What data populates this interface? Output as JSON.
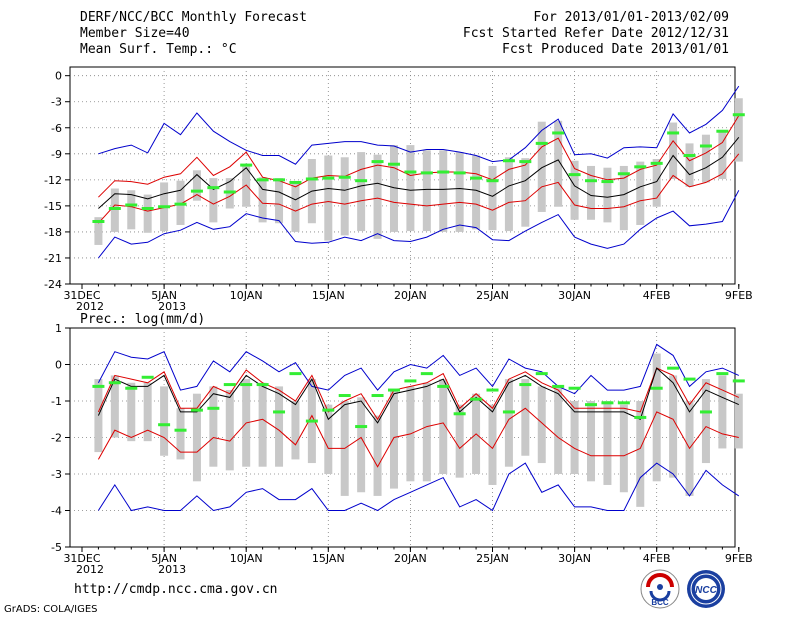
{
  "header": {
    "title": "DERF/NCC/BCC Monthly Forecast",
    "member_size": "Member Size=40",
    "variable": "Mean Surf. Temp.: °C",
    "forecast_period": "For 2013/01/01-2013/02/09",
    "start_date": "Fcst Started Refer Date 2012/12/31",
    "produced_date": "Fcst Produced Date 2013/01/01"
  },
  "footer": {
    "url": "http://cmdp.ncc.cma.gov.cn",
    "credit": "GrADS: COLA/IGES",
    "logo_left_text": "BCC",
    "logo_right_text": "NCC"
  },
  "colors": {
    "max_min": "#0000cc",
    "spread": "#dd0000",
    "mean": "#000000",
    "obs_bar": "#33ee33",
    "box": "#c8c8c8",
    "grid": "#808080"
  },
  "chart_data": [
    {
      "type": "line",
      "title": "Mean Surf. Temp.: °C",
      "ylim": [
        -24,
        1
      ],
      "yticks": [
        0,
        -3,
        -6,
        -9,
        -12,
        -15,
        -18,
        -21,
        -24
      ],
      "x_tick_labels": [
        {
          "day": 0,
          "label": "31DEC",
          "label2": "2012"
        },
        {
          "day": 5,
          "label": "5JAN",
          "label2": "2013"
        },
        {
          "day": 10,
          "label": "10JAN"
        },
        {
          "day": 15,
          "label": "15JAN"
        },
        {
          "day": 20,
          "label": "20JAN"
        },
        {
          "day": 25,
          "label": "25JAN"
        },
        {
          "day": 30,
          "label": "30JAN"
        },
        {
          "day": 35,
          "label": "4FEB"
        },
        {
          "day": 40,
          "label": "9FEB"
        }
      ],
      "days": [
        1,
        2,
        3,
        4,
        5,
        6,
        7,
        8,
        9,
        10,
        11,
        12,
        13,
        14,
        15,
        16,
        17,
        18,
        19,
        20,
        21,
        22,
        23,
        24,
        25,
        26,
        27,
        28,
        29,
        30,
        31,
        32,
        33,
        34,
        35,
        36,
        37,
        38,
        39,
        40
      ],
      "series": [
        {
          "name": "max",
          "values": [
            -9.0,
            -8.4,
            -8.0,
            -8.9,
            -5.5,
            -6.8,
            -4.3,
            -6.4,
            -7.6,
            -8.6,
            -9.2,
            -9.2,
            -10.2,
            -8.0,
            -7.8,
            -7.6,
            -7.6,
            -8.0,
            -8.1,
            -8.8,
            -8.5,
            -8.5,
            -8.8,
            -9.2,
            -9.9,
            -9.7,
            -8.3,
            -6.3,
            -5.0,
            -9.1,
            -9.0,
            -9.5,
            -8.3,
            -8.2,
            -8.3,
            -4.4,
            -6.6,
            -5.6,
            -4.0,
            -1.2
          ]
        },
        {
          "name": "spread_upper",
          "values": [
            -14.0,
            -12.1,
            -12.2,
            -12.5,
            -11.7,
            -11.3,
            -9.4,
            -11.5,
            -10.5,
            -8.8,
            -11.7,
            -12.1,
            -12.8,
            -11.8,
            -11.5,
            -11.6,
            -10.8,
            -10.3,
            -10.6,
            -11.5,
            -11.2,
            -11.1,
            -11.1,
            -11.3,
            -12.0,
            -10.8,
            -10.3,
            -8.2,
            -7.2,
            -10.7,
            -11.5,
            -12.0,
            -11.8,
            -10.8,
            -10.3,
            -7.5,
            -9.8,
            -8.9,
            -7.7,
            -4.6
          ]
        },
        {
          "name": "mean",
          "values": [
            -15.3,
            -13.6,
            -13.7,
            -14.2,
            -13.6,
            -13.2,
            -11.4,
            -13.1,
            -12.2,
            -10.6,
            -13.1,
            -13.4,
            -14.3,
            -13.3,
            -13.0,
            -13.2,
            -12.7,
            -12.4,
            -12.9,
            -13.2,
            -13.1,
            -13.1,
            -13.0,
            -13.2,
            -13.9,
            -12.7,
            -12.1,
            -10.6,
            -9.7,
            -12.7,
            -13.8,
            -14.0,
            -13.7,
            -12.8,
            -12.2,
            -9.2,
            -11.4,
            -10.6,
            -9.4,
            -7.1
          ]
        },
        {
          "name": "spread_lower",
          "values": [
            -17.0,
            -14.9,
            -15.1,
            -15.6,
            -15.2,
            -14.8,
            -13.7,
            -14.8,
            -13.9,
            -12.6,
            -14.7,
            -14.8,
            -15.6,
            -14.8,
            -14.5,
            -14.8,
            -14.4,
            -14.1,
            -14.6,
            -14.8,
            -15.0,
            -14.8,
            -14.6,
            -14.8,
            -15.5,
            -14.6,
            -14.4,
            -12.8,
            -12.3,
            -14.9,
            -15.3,
            -15.3,
            -15.1,
            -14.4,
            -14.1,
            -11.5,
            -12.8,
            -12.3,
            -11.3,
            -9.0
          ]
        },
        {
          "name": "min",
          "values": [
            -21.0,
            -18.6,
            -19.4,
            -19.2,
            -18.2,
            -17.8,
            -16.9,
            -17.7,
            -17.4,
            -15.9,
            -16.4,
            -16.7,
            -19.1,
            -19.3,
            -19.2,
            -18.6,
            -19.0,
            -18.2,
            -19.0,
            -19.1,
            -18.6,
            -17.7,
            -17.2,
            -17.5,
            -18.9,
            -19.0,
            -17.9,
            -16.9,
            -16.0,
            -18.6,
            -19.4,
            -19.9,
            -19.4,
            -17.7,
            -16.4,
            -15.6,
            -17.3,
            -17.1,
            -16.8,
            -13.2
          ]
        }
      ],
      "boxes": [
        [
          -16.3,
          -19.5
        ],
        [
          -13.0,
          -18.0
        ],
        [
          -13.2,
          -17.7
        ],
        [
          -13.7,
          -18.1
        ],
        [
          -12.3,
          -17.9
        ],
        [
          -12.1,
          -17.2
        ],
        [
          -10.9,
          -14.4
        ],
        [
          -11.8,
          -16.9
        ],
        [
          -11.8,
          -15.3
        ],
        [
          -10.2,
          -15.1
        ],
        [
          -11.7,
          -16.9
        ],
        [
          -11.8,
          -17.0
        ],
        [
          -12.3,
          -18.0
        ],
        [
          -9.6,
          -17.0
        ],
        [
          -9.2,
          -19.0
        ],
        [
          -9.4,
          -18.4
        ],
        [
          -8.8,
          -17.9
        ],
        [
          -9.1,
          -18.8
        ],
        [
          -8.0,
          -18.0
        ],
        [
          -8.0,
          -17.9
        ],
        [
          -8.6,
          -17.9
        ],
        [
          -8.6,
          -18.0
        ],
        [
          -8.8,
          -18.0
        ],
        [
          -9.2,
          -17.7
        ],
        [
          -10.4,
          -17.8
        ],
        [
          -9.4,
          -17.9
        ],
        [
          -9.5,
          -17.4
        ],
        [
          -5.3,
          -15.7
        ],
        [
          -5.2,
          -15.1
        ],
        [
          -9.8,
          -16.6
        ],
        [
          -10.4,
          -16.6
        ],
        [
          -10.6,
          -16.9
        ],
        [
          -10.4,
          -17.8
        ],
        [
          -9.9,
          -17.2
        ],
        [
          -9.6,
          -15.1
        ],
        [
          -5.4,
          -11.9
        ],
        [
          -7.8,
          -12.8
        ],
        [
          -6.8,
          -12.3
        ],
        [
          -6.3,
          -11.9
        ],
        [
          -2.6,
          -9.9
        ]
      ],
      "observed": [
        -16.8,
        -15.3,
        -14.9,
        -15.3,
        -15.1,
        -14.8,
        -13.3,
        -12.9,
        -13.4,
        -10.3,
        -12.0,
        -12.0,
        -12.3,
        -11.9,
        -11.8,
        -11.7,
        -12.1,
        -9.9,
        -10.2,
        -11.1,
        -11.2,
        -11.1,
        -11.2,
        -11.8,
        -12.1,
        -9.8,
        -9.9,
        -7.8,
        -6.6,
        -11.4,
        -12.1,
        -12.2,
        -11.3,
        -10.5,
        -10.1,
        -6.6,
        -9.2,
        -8.1,
        -6.4,
        -4.5
      ]
    },
    {
      "type": "line",
      "title": "Prec.: log(mm/d)",
      "ylim": [
        -5,
        1
      ],
      "yticks": [
        1,
        0,
        -1,
        -2,
        -3,
        -4,
        -5
      ],
      "x_tick_labels": [
        {
          "day": 0,
          "label": "31DEC",
          "label2": "2012"
        },
        {
          "day": 5,
          "label": "5JAN",
          "label2": "2013"
        },
        {
          "day": 10,
          "label": "10JAN"
        },
        {
          "day": 15,
          "label": "15JAN"
        },
        {
          "day": 20,
          "label": "20JAN"
        },
        {
          "day": 25,
          "label": "25JAN"
        },
        {
          "day": 30,
          "label": "30JAN"
        },
        {
          "day": 35,
          "label": "4FEB"
        },
        {
          "day": 40,
          "label": "9FEB"
        }
      ],
      "days": [
        1,
        2,
        3,
        4,
        5,
        6,
        7,
        8,
        9,
        10,
        11,
        12,
        13,
        14,
        15,
        16,
        17,
        18,
        19,
        20,
        21,
        22,
        23,
        24,
        25,
        26,
        27,
        28,
        29,
        30,
        31,
        32,
        33,
        34,
        35,
        36,
        37,
        38,
        39,
        40
      ],
      "series": [
        {
          "name": "max",
          "values": [
            -0.5,
            0.35,
            0.2,
            0.15,
            0.35,
            -0.7,
            -0.6,
            0.1,
            -0.2,
            0.35,
            0.1,
            -0.2,
            0.05,
            -0.6,
            -0.7,
            -0.3,
            -0.1,
            -0.7,
            -0.2,
            0.0,
            -0.1,
            0.25,
            -0.3,
            -0.1,
            -0.6,
            0.15,
            -0.1,
            -0.2,
            -0.6,
            -0.8,
            -0.3,
            -0.7,
            -0.7,
            -0.6,
            0.55,
            0.25,
            -0.6,
            -0.2,
            -0.1,
            -0.3
          ]
        },
        {
          "name": "spread_upper",
          "values": [
            -1.3,
            -0.3,
            -0.4,
            -0.5,
            -0.2,
            -1.2,
            -1.2,
            -0.6,
            -0.8,
            -0.15,
            -0.5,
            -0.7,
            -1.0,
            -0.3,
            -1.3,
            -1.0,
            -0.8,
            -1.5,
            -0.7,
            -0.6,
            -0.5,
            -0.25,
            -1.2,
            -0.8,
            -1.2,
            -0.4,
            -0.2,
            -0.5,
            -0.7,
            -1.2,
            -1.2,
            -1.2,
            -1.2,
            -1.3,
            -0.1,
            -0.3,
            -1.1,
            -0.5,
            -0.7,
            -0.9
          ]
        },
        {
          "name": "mean",
          "values": [
            -1.4,
            -0.4,
            -0.6,
            -0.6,
            -0.3,
            -1.3,
            -1.3,
            -0.8,
            -0.9,
            -0.3,
            -0.6,
            -0.8,
            -1.1,
            -0.4,
            -1.5,
            -1.1,
            -1.0,
            -1.6,
            -0.8,
            -0.7,
            -0.6,
            -0.4,
            -1.3,
            -0.9,
            -1.3,
            -0.5,
            -0.3,
            -0.6,
            -0.8,
            -1.3,
            -1.3,
            -1.3,
            -1.3,
            -1.5,
            -0.1,
            -0.5,
            -1.3,
            -0.7,
            -0.9,
            -1.1
          ]
        },
        {
          "name": "spread_lower",
          "values": [
            -2.6,
            -1.8,
            -2.0,
            -1.8,
            -2.0,
            -2.4,
            -2.4,
            -2.0,
            -2.1,
            -1.6,
            -1.5,
            -1.8,
            -2.2,
            -1.4,
            -2.3,
            -2.3,
            -2.0,
            -2.8,
            -2.0,
            -1.9,
            -1.7,
            -1.6,
            -2.3,
            -1.9,
            -2.3,
            -1.5,
            -1.2,
            -1.6,
            -2.0,
            -2.3,
            -2.5,
            -2.5,
            -2.5,
            -2.3,
            -1.3,
            -1.5,
            -2.3,
            -1.7,
            -1.9,
            -2.0
          ]
        },
        {
          "name": "min",
          "values": [
            -4.0,
            -3.3,
            -4.0,
            -3.9,
            -4.0,
            -4.0,
            -3.6,
            -4.0,
            -3.9,
            -3.5,
            -3.4,
            -3.7,
            -3.7,
            -3.4,
            -4.0,
            -4.0,
            -3.8,
            -4.0,
            -3.7,
            -3.5,
            -3.3,
            -3.1,
            -3.9,
            -3.7,
            -4.0,
            -3.0,
            -2.7,
            -3.5,
            -3.3,
            -3.9,
            -3.9,
            -4.0,
            -4.0,
            -3.1,
            -2.7,
            -3.0,
            -3.6,
            -2.9,
            -3.3,
            -3.6
          ]
        }
      ],
      "boxes": [
        [
          -0.4,
          -2.4
        ],
        [
          -0.3,
          -2.0
        ],
        [
          -0.5,
          -2.1
        ],
        [
          -0.5,
          -2.1
        ],
        [
          -0.6,
          -2.5
        ],
        [
          -1.2,
          -2.6
        ],
        [
          -0.8,
          -3.2
        ],
        [
          -0.6,
          -2.8
        ],
        [
          -0.7,
          -2.9
        ],
        [
          -0.4,
          -2.8
        ],
        [
          -0.5,
          -2.8
        ],
        [
          -0.6,
          -2.8
        ],
        [
          -1.0,
          -2.6
        ],
        [
          -0.4,
          -2.7
        ],
        [
          -1.1,
          -3.0
        ],
        [
          -1.0,
          -3.6
        ],
        [
          -0.9,
          -3.5
        ],
        [
          -1.4,
          -3.6
        ],
        [
          -0.7,
          -3.4
        ],
        [
          -0.6,
          -3.2
        ],
        [
          -0.5,
          -3.2
        ],
        [
          -0.4,
          -3.0
        ],
        [
          -1.1,
          -3.1
        ],
        [
          -0.8,
          -3.0
        ],
        [
          -1.1,
          -3.3
        ],
        [
          -0.4,
          -2.8
        ],
        [
          -0.4,
          -2.5
        ],
        [
          -0.6,
          -2.7
        ],
        [
          -0.6,
          -3.0
        ],
        [
          -1.0,
          -3.0
        ],
        [
          -1.0,
          -3.2
        ],
        [
          -1.0,
          -3.3
        ],
        [
          -1.1,
          -3.5
        ],
        [
          -1.0,
          -3.9
        ],
        [
          0.3,
          -3.2
        ],
        [
          -0.3,
          -3.1
        ],
        [
          -1.0,
          -3.6
        ],
        [
          -0.4,
          -2.7
        ],
        [
          -0.3,
          -2.3
        ],
        [
          -0.8,
          -2.3
        ]
      ],
      "observed": [
        -0.6,
        -0.5,
        -0.65,
        -0.35,
        -1.65,
        -1.8,
        -1.25,
        -1.2,
        -0.55,
        -0.55,
        -0.55,
        -1.3,
        -0.25,
        -1.55,
        -1.25,
        -0.85,
        -1.7,
        -0.85,
        -0.7,
        -0.45,
        -0.25,
        -0.6,
        -1.35,
        -0.95,
        -0.7,
        -1.3,
        -0.55,
        -0.25,
        -0.6,
        -0.65,
        -1.1,
        -1.05,
        -1.05,
        -1.45,
        -0.65,
        -0.1,
        -0.4,
        -1.3,
        -0.25,
        -0.45
      ]
    }
  ]
}
